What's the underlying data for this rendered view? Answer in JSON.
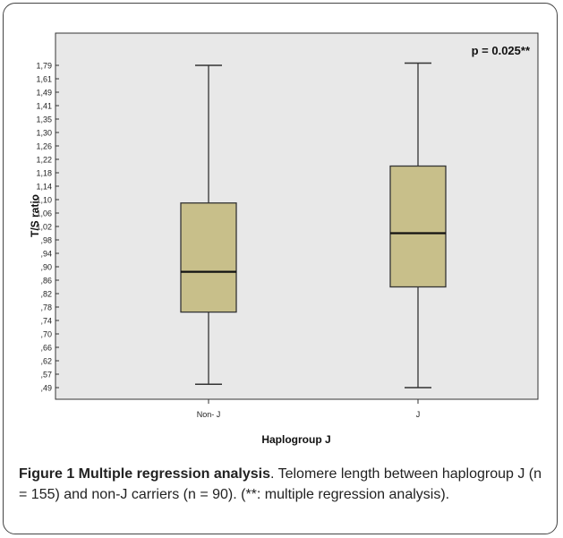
{
  "chart_data": {
    "type": "box",
    "annotation": "p = 0.025**",
    "xlabel": "Haplogroup J",
    "ylabel": "T/S ratio",
    "y_ticks": [
      "1,79",
      "1,61",
      "1,49",
      "1,41",
      "1,35",
      "1,30",
      "1,26",
      "1,22",
      "1,18",
      "1,14",
      "1,10",
      "1,06",
      "1,02",
      ",98",
      ",94",
      ",90",
      ",86",
      ",82",
      ",78",
      ",74",
      ",70",
      ",66",
      ",62",
      ",57",
      ",49"
    ],
    "categories": [
      "Non- J",
      "J"
    ],
    "boxes": [
      {
        "category": "Non- J",
        "min": 0.51,
        "q1": 0.765,
        "median": 0.885,
        "q3": 1.09,
        "max": 1.79
      },
      {
        "category": "J",
        "min": 0.49,
        "q1": 0.84,
        "median": 1.0,
        "q3": 1.2,
        "max": 1.82
      }
    ],
    "colors": {
      "box_fill": "#c8bf8a",
      "box_stroke": "#333333",
      "plot_bg": "#e8e8e8",
      "frame": "#444444"
    }
  },
  "caption": {
    "label": "Figure 1 Multiple regression analysis",
    "text": ". Telomere length between haplogroup J (n = 155) and non-J carriers (n = 90). (**: multiple regression analysis)."
  }
}
